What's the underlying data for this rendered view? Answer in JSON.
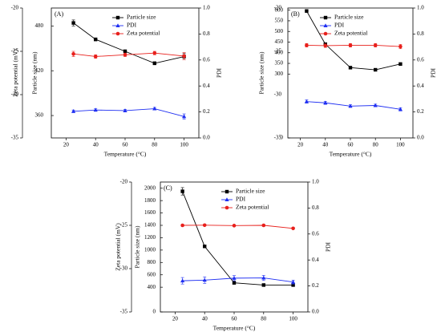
{
  "chart_data": [
    {
      "type": "line",
      "panel_label": "(A)",
      "xlabel": "Temperature (°C)",
      "ylabel_size": "Particle size (nm)",
      "ylabel_zeta": "Zeta potential (mV)",
      "ylabel_pdi": "PDI",
      "x": [
        25,
        40,
        60,
        80,
        100
      ],
      "xlim": [
        10,
        110
      ],
      "xticks": [
        "20",
        "40",
        "60",
        "80",
        "100"
      ],
      "size_ylim": [
        330,
        504
      ],
      "size_ticks": [
        "360",
        "420",
        "480"
      ],
      "zeta_ylim": [
        -35,
        -20
      ],
      "zeta_ticks": [
        "-35",
        "-30",
        "-25",
        "-20"
      ],
      "pdi_ylim": [
        0,
        1.0
      ],
      "pdi_ticks": [
        "0.0",
        "0.2",
        "0.4",
        "0.6",
        "0.8",
        "1.0"
      ],
      "legend": [
        "Particle size",
        "PDI",
        "Zeta potential"
      ],
      "series": [
        {
          "name": "Particle size",
          "axis": "size",
          "color": "#000000",
          "marker": "square",
          "values": [
            484,
            462,
            446,
            430,
            439
          ],
          "errors": [
            4,
            2,
            2,
            2,
            4
          ]
        },
        {
          "name": "PDI",
          "axis": "pdi",
          "color": "#1f2ff2",
          "marker": "triangle",
          "values": [
            0.205,
            0.215,
            0.21,
            0.225,
            0.165
          ],
          "errors": [
            0.01,
            0.01,
            0.01,
            0.01,
            0.02
          ]
        },
        {
          "name": "Zeta potential",
          "axis": "zeta",
          "color": "#e8201c",
          "marker": "circle",
          "values": [
            -25.3,
            -25.6,
            -25.4,
            -25.2,
            -25.55
          ],
          "errors": [
            0.3,
            0.2,
            0.2,
            0.2,
            0.4
          ]
        }
      ]
    },
    {
      "type": "line",
      "panel_label": "(B)",
      "xlabel": "Temperature (°C)",
      "ylabel_size": "Particle size (nm)",
      "ylabel_zeta": "",
      "ylabel_pdi": "PDI",
      "x": [
        25,
        40,
        60,
        80,
        100
      ],
      "xlim": [
        10,
        110
      ],
      "xticks": [
        "20",
        "40",
        "60",
        "80",
        "100"
      ],
      "size_ylim": [
        0,
        610
      ],
      "size_ticks": [
        "0",
        "300",
        "350",
        "400",
        "450",
        "500",
        "550",
        "600"
      ],
      "zeta_ylim": [
        -35,
        -20
      ],
      "zeta_ticks": [
        "-35",
        "-30",
        "-25",
        "-20"
      ],
      "pdi_ylim": [
        0,
        1.0
      ],
      "pdi_ticks": [
        "0.0",
        "0.2",
        "0.4",
        "0.6",
        "0.8",
        "1.0"
      ],
      "legend": [
        "Particle size",
        "PDI",
        "Zeta potential"
      ],
      "series": [
        {
          "name": "Particle size",
          "axis": "size",
          "color": "#000000",
          "marker": "square",
          "values": [
            596,
            440,
            330,
            320,
            347
          ],
          "errors": [
            6,
            4,
            3,
            6,
            4
          ]
        },
        {
          "name": "PDI",
          "axis": "pdi",
          "color": "#1f2ff2",
          "marker": "triangle",
          "values": [
            0.28,
            0.27,
            0.245,
            0.25,
            0.22
          ],
          "errors": [
            0.012,
            0.012,
            0.01,
            0.01,
            0.012
          ]
        },
        {
          "name": "Zeta potential",
          "axis": "zeta",
          "color": "#e8201c",
          "marker": "circle",
          "values": [
            -24.3,
            -24.35,
            -24.3,
            -24.3,
            -24.45
          ],
          "errors": [
            0.2,
            0.2,
            0.2,
            0.2,
            0.25
          ]
        }
      ]
    },
    {
      "type": "line",
      "panel_label": "(C)",
      "xlabel": "Temperature (°C)",
      "ylabel_size": "Particle size (nm)",
      "ylabel_zeta": "Zeta potential (mV)",
      "ylabel_pdi": "PDI",
      "x": [
        25,
        40,
        60,
        80,
        100
      ],
      "xlim": [
        10,
        110
      ],
      "xticks": [
        "20",
        "40",
        "60",
        "80",
        "100"
      ],
      "size_ylim": [
        0,
        2100
      ],
      "size_ticks": [
        "0",
        "400",
        "600",
        "800",
        "1000",
        "1200",
        "1400",
        "1600",
        "1800",
        "2000"
      ],
      "zeta_ylim": [
        -35,
        -20
      ],
      "zeta_ticks": [
        "-35",
        "-30",
        "-25",
        "-20"
      ],
      "pdi_ylim": [
        0,
        1.0
      ],
      "pdi_ticks": [
        "0.0",
        "0.2",
        "0.4",
        "0.6",
        "0.8",
        "1.0"
      ],
      "legend": [
        "Particle size",
        "PDI",
        "Zeta potential"
      ],
      "series": [
        {
          "name": "Particle size",
          "axis": "size",
          "color": "#000000",
          "marker": "square",
          "values": [
            1950,
            1060,
            470,
            435,
            435
          ],
          "errors": [
            60,
            20,
            10,
            10,
            10
          ]
        },
        {
          "name": "PDI",
          "axis": "pdi",
          "color": "#1f2ff2",
          "marker": "triangle",
          "values": [
            0.24,
            0.245,
            0.26,
            0.262,
            0.23
          ],
          "errors": [
            0.025,
            0.025,
            0.02,
            0.02,
            0.015
          ]
        },
        {
          "name": "Zeta potential",
          "axis": "zeta",
          "color": "#e8201c",
          "marker": "circle",
          "values": [
            -25.0,
            -24.98,
            -25.03,
            -25.0,
            -25.35
          ],
          "errors": [
            0.08,
            0.08,
            0.08,
            0.08,
            0.08
          ]
        }
      ]
    }
  ]
}
